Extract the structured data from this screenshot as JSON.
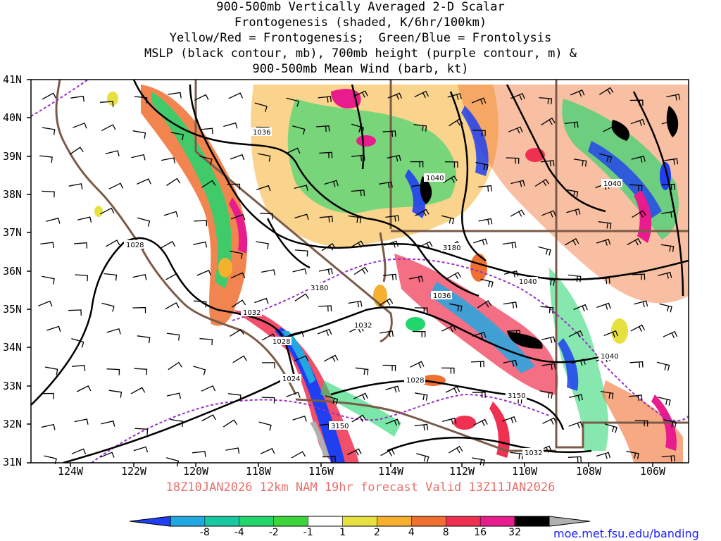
{
  "title_lines": [
    "900-500mb Vertically Averaged 2-D Scalar",
    "Frontogenesis (shaded, K/6hr/100km)",
    "Yellow/Red = Frontogenesis;  Green/Blue = Frontolysis",
    "MSLP (black contour, mb), 700mb height (purple contour, m) &",
    "900-500mb Mean Wind (barb, kt)"
  ],
  "lat_labels": [
    "41N",
    "40N",
    "39N",
    "38N",
    "37N",
    "36N",
    "35N",
    "34N",
    "33N",
    "32N",
    "31N"
  ],
  "lon_labels": [
    "124W",
    "122W",
    "120W",
    "118W",
    "116W",
    "114W",
    "112W",
    "110W",
    "108W",
    "106W"
  ],
  "contour_labels": {
    "mslp": [
      "1036",
      "1040",
      "1040",
      "1028",
      "1032",
      "1032",
      "1036",
      "1040",
      "1028",
      "1024",
      "1028",
      "1040",
      "1032"
    ],
    "height700": [
      "3180",
      "3180",
      "3150",
      "3150"
    ]
  },
  "valid_text": "18Z10JAN2026 12km NAM 19hr forecast Valid 13Z11JAN2026",
  "colorbar": {
    "ticks": [
      "-8",
      "-4",
      "-2",
      "-1",
      "1",
      "2",
      "4",
      "8",
      "16",
      "32"
    ],
    "colors": [
      "#1f3ff0",
      "#21a8e0",
      "#18c8a0",
      "#22d66e",
      "#3cd63c",
      "#ffffff",
      "#e6e040",
      "#f5b030",
      "#f07030",
      "#f03050",
      "#e81c8c",
      "#000000",
      "#b0b0b0"
    ]
  },
  "credit": "moe.met.fsu.edu/banding"
}
